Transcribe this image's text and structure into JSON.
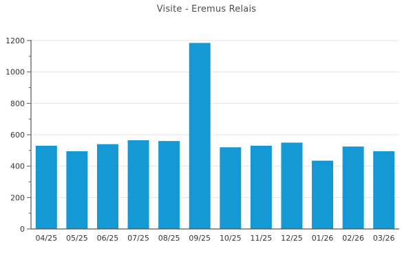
{
  "chart_data": {
    "type": "bar",
    "title": "Visite - Eremus Relais",
    "categories": [
      "04/25",
      "05/25",
      "06/25",
      "07/25",
      "08/25",
      "09/25",
      "10/25",
      "11/25",
      "12/25",
      "01/26",
      "02/26",
      "03/26"
    ],
    "values": [
      530,
      495,
      540,
      565,
      560,
      1185,
      520,
      530,
      550,
      435,
      525,
      495
    ],
    "xlabel": "",
    "ylabel": "",
    "ylim": [
      0,
      1200
    ],
    "ytick_step_major": 200,
    "ytick_step_minor": 100,
    "grid": true,
    "legend": "none",
    "colors": {
      "bar": "#1499d5",
      "grid_line": "#e4e4e4",
      "axis_line": "#555555",
      "tick_label": "#333333",
      "title": "#4d4d4d"
    }
  }
}
